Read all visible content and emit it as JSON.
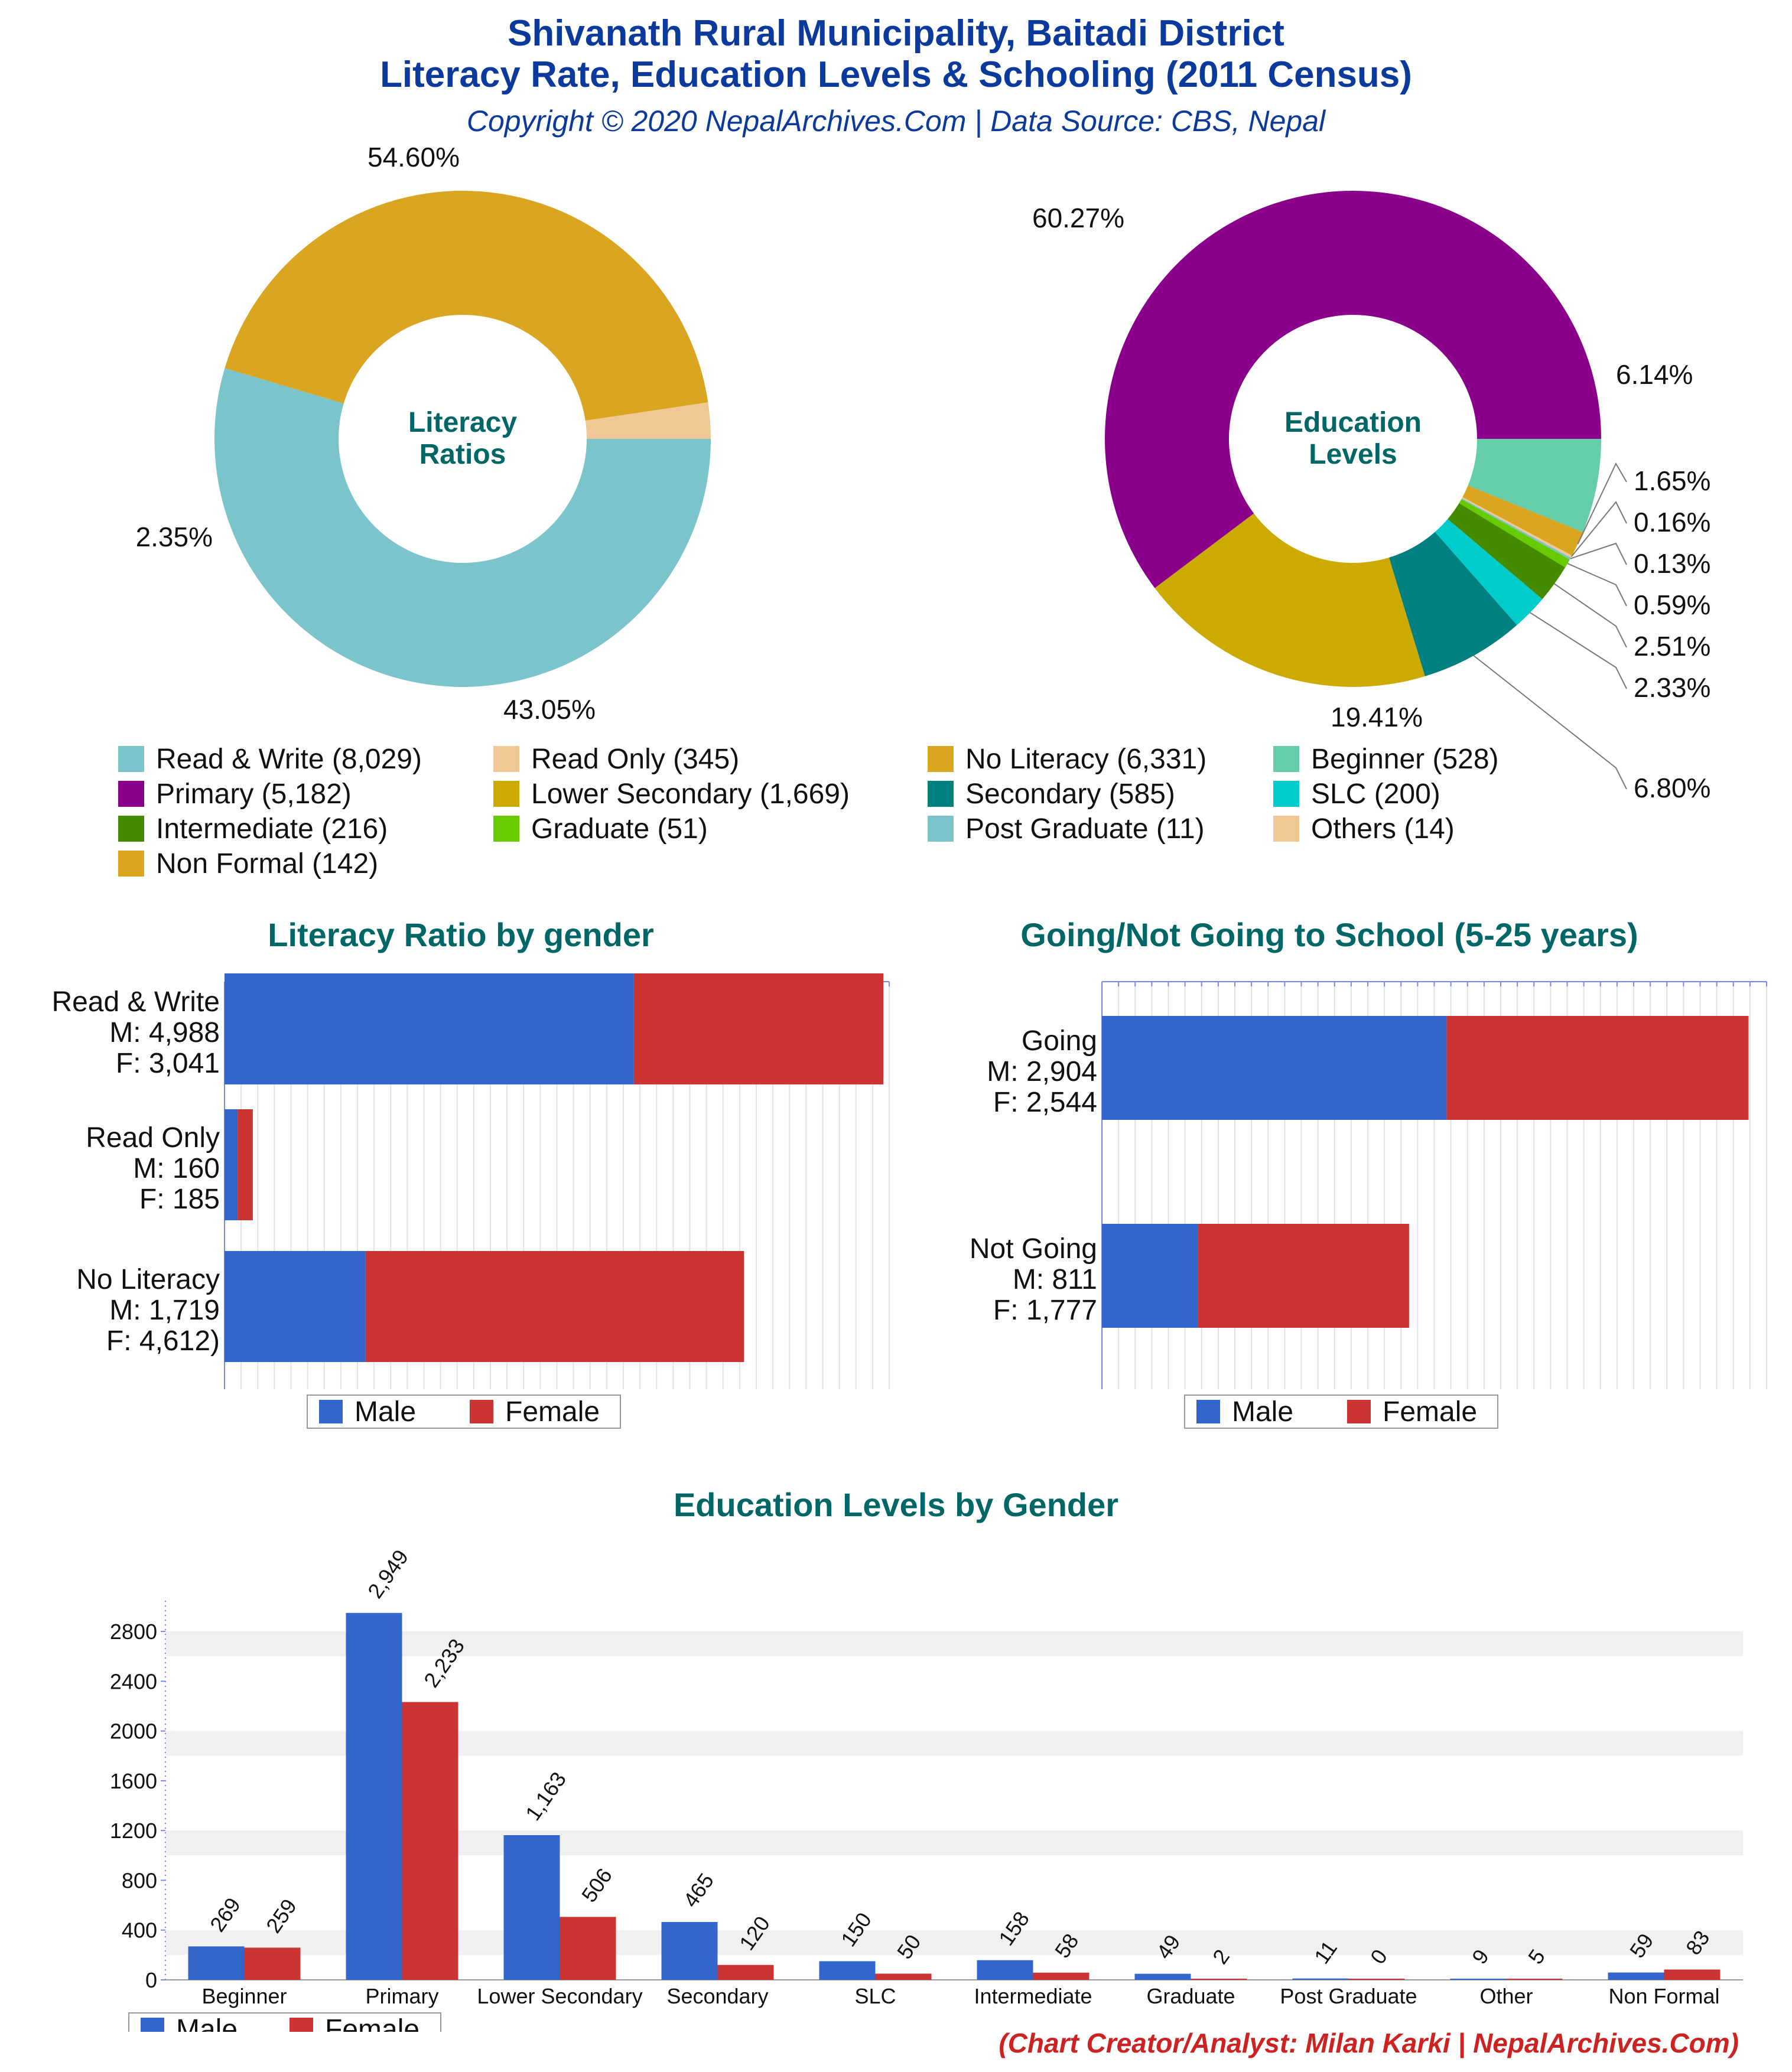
{
  "header": {
    "title_line1": "Shivanath Rural Municipality, Baitadi District",
    "title_line2": "Literacy Rate, Education Levels & Schooling (2011 Census)",
    "subtitle": "Copyright © 2020 NepalArchives.Com | Data Source: CBS, Nepal"
  },
  "legend": [
    {
      "label": "Read & Write (8,029)",
      "color": "#7cc4cc"
    },
    {
      "label": "Read Only (345)",
      "color": "#f0c896"
    },
    {
      "label": "No Literacy (6,331)",
      "color": "#daa520"
    },
    {
      "label": "Beginner (528)",
      "color": "#66cdaa"
    },
    {
      "label": "Primary (5,182)",
      "color": "#8b008b"
    },
    {
      "label": "Lower Secondary (1,669)",
      "color": "#ccaa00"
    },
    {
      "label": "Secondary (585)",
      "color": "#008080"
    },
    {
      "label": "SLC (200)",
      "color": "#00cccc"
    },
    {
      "label": "Intermediate (216)",
      "color": "#458b00"
    },
    {
      "label": "Graduate (51)",
      "color": "#66cc00"
    },
    {
      "label": "Post Graduate (11)",
      "color": "#7cc4cc"
    },
    {
      "label": "Others (14)",
      "color": "#f0c896"
    },
    {
      "label": "Non Formal (142)",
      "color": "#daa520"
    }
  ],
  "literacy_gender_title": "Literacy Ratio by gender",
  "school_title": "Going/Not Going to School (5-25 years)",
  "edu_gender_title": "Education Levels by Gender",
  "legend_male": "Male",
  "legend_female": "Female",
  "creator": "(Chart Creator/Analyst: Milan Karki | NepalArchives.Com)",
  "colors": {
    "male": "#3366cc",
    "female": "#cc3333"
  },
  "chart_data": [
    {
      "type": "pie",
      "title": "Literacy Ratios",
      "donut": true,
      "slices": [
        {
          "name": "Read & Write",
          "value": 8029,
          "label": "54.60%",
          "color": "#7cc4cc"
        },
        {
          "name": "No Literacy",
          "value": 6331,
          "label": "43.05%",
          "color": "#daa520"
        },
        {
          "name": "Read Only",
          "value": 345,
          "label": "2.35%",
          "color": "#f0c896"
        }
      ]
    },
    {
      "type": "pie",
      "title": "Education Levels",
      "donut": true,
      "slices": [
        {
          "name": "Beginner",
          "value": 528,
          "label": "6.14%",
          "color": "#66cdaa"
        },
        {
          "name": "Non Formal",
          "value": 142,
          "label": "1.65%",
          "color": "#daa520"
        },
        {
          "name": "Others",
          "value": 14,
          "label": "0.16%",
          "color": "#f0c896"
        },
        {
          "name": "Post Graduate",
          "value": 11,
          "label": "0.13%",
          "color": "#7cc4cc"
        },
        {
          "name": "Graduate",
          "value": 51,
          "label": "0.59%",
          "color": "#66cc00"
        },
        {
          "name": "Intermediate",
          "value": 216,
          "label": "2.51%",
          "color": "#458b00"
        },
        {
          "name": "SLC",
          "value": 200,
          "label": "2.33%",
          "color": "#00cccc"
        },
        {
          "name": "Secondary",
          "value": 585,
          "label": "6.80%",
          "color": "#008080"
        },
        {
          "name": "Lower Secondary",
          "value": 1669,
          "label": "19.41%",
          "color": "#ccaa00"
        },
        {
          "name": "Primary",
          "value": 5182,
          "label": "60.27%",
          "color": "#8b008b"
        }
      ]
    },
    {
      "type": "bar",
      "orientation": "horizontal",
      "stacked": true,
      "title": "Literacy Ratio by gender",
      "categories": [
        [
          "Read & Write",
          "M: 4,988",
          "F: 3,041"
        ],
        [
          "Read Only",
          "M: 160",
          "F: 185"
        ],
        [
          "No Literacy",
          "M: 1,719",
          "F: 4,612)"
        ]
      ],
      "series": [
        {
          "name": "Male",
          "values": [
            4988,
            160,
            1719
          ]
        },
        {
          "name": "Female",
          "values": [
            3041,
            185,
            4612
          ]
        }
      ],
      "xlim": [
        0,
        8100
      ]
    },
    {
      "type": "bar",
      "orientation": "horizontal",
      "stacked": true,
      "title": "Going/Not Going to School (5-25 years)",
      "categories": [
        [
          "Going",
          "M: 2,904",
          "F: 2,544"
        ],
        [
          "Not Going",
          "M: 811",
          "F: 1,777"
        ]
      ],
      "series": [
        {
          "name": "Male",
          "values": [
            2904,
            811
          ]
        },
        {
          "name": "Female",
          "values": [
            2544,
            1777
          ]
        }
      ],
      "xlim": [
        0,
        5600
      ]
    },
    {
      "type": "bar",
      "title": "Education Levels by Gender",
      "categories": [
        "Beginner",
        "Primary",
        "Lower Secondary",
        "Secondary",
        "SLC",
        "Intermediate",
        "Graduate",
        "Post Graduate",
        "Other",
        "Non Formal"
      ],
      "series": [
        {
          "name": "Male",
          "values": [
            269,
            2949,
            1163,
            465,
            150,
            158,
            49,
            11,
            9,
            59
          ],
          "labels": [
            "269",
            "2,949",
            "1,163",
            "465",
            "150",
            "158",
            "49",
            "11",
            "9",
            "59"
          ]
        },
        {
          "name": "Female",
          "values": [
            259,
            2233,
            506,
            120,
            50,
            58,
            2,
            0,
            5,
            83
          ],
          "labels": [
            "259",
            "2,233",
            "506",
            "120",
            "50",
            "58",
            "2",
            "0",
            "5",
            "83"
          ]
        }
      ],
      "yticks": [
        "0",
        "400",
        "800",
        "1200",
        "1600",
        "2000",
        "2400",
        "2800"
      ],
      "ylim": [
        0,
        3000
      ]
    }
  ]
}
